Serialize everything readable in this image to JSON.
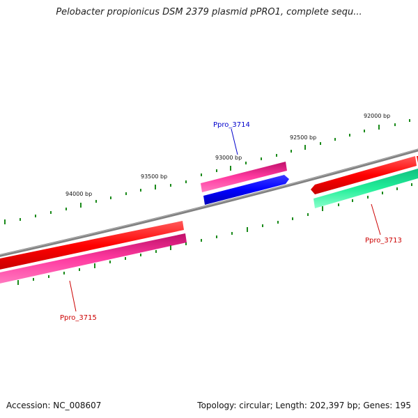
{
  "title": "Pelobacter propionicus DSM 2379 plasmid pPRO1, complete sequ...",
  "footer": {
    "accession": "Accession: NC_008607",
    "summary": "Topology: circular; Length: 202,397 bp; Genes: 195"
  },
  "ruler": {
    "labels": [
      "92000 bp",
      "92500 bp",
      "93000 bp",
      "93500 bp",
      "94000 bp"
    ]
  },
  "genes": [
    {
      "label": "Ppro_3713",
      "color": "#cc0000"
    },
    {
      "label": "Ppro_3714",
      "color": "#0000cc"
    },
    {
      "label": "Ppro_3715",
      "color": "#cc0000"
    }
  ],
  "colors": {
    "backbone": "#808080",
    "ticks": "#1a8a1a",
    "red": "#ff0000",
    "pink": "#ff3aa0",
    "blue": "#0000ff",
    "green": "#22ee99"
  }
}
